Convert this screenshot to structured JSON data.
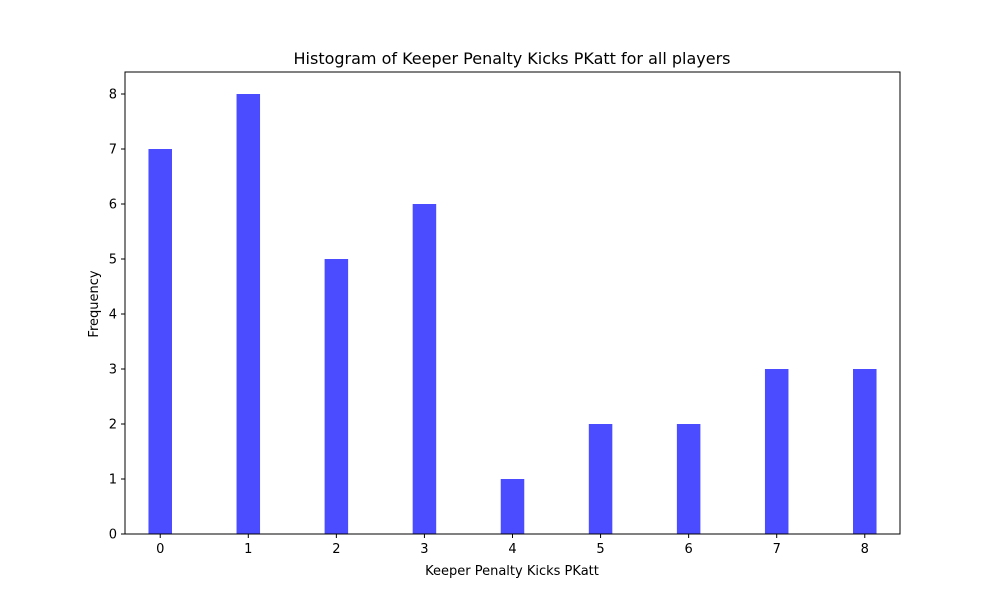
{
  "chart_data": {
    "type": "bar",
    "title": "Histogram of Keeper Penalty Kicks PKatt for all players",
    "xlabel": "Keeper Penalty Kicks PKatt",
    "ylabel": "Frequency",
    "bars": [
      {
        "x": 0,
        "value": 7
      },
      {
        "x": 1,
        "value": 8
      },
      {
        "x": 2,
        "value": 5
      },
      {
        "x": 3,
        "value": 6
      },
      {
        "x": 4,
        "value": 1
      },
      {
        "x": 5,
        "value": 2
      },
      {
        "x": 6,
        "value": 2
      },
      {
        "x": 7,
        "value": 3
      },
      {
        "x": 8,
        "value": 3
      }
    ],
    "xticks": [
      "0",
      "1",
      "2",
      "3",
      "4",
      "5",
      "6",
      "7",
      "8"
    ],
    "yticks": [
      "0",
      "1",
      "2",
      "3",
      "4",
      "5",
      "6",
      "7",
      "8"
    ],
    "xlim": [
      -0.4,
      8.4
    ],
    "ylim": [
      0,
      8.4
    ],
    "bar_width": 0.267,
    "bar_color": "#4b4bff",
    "grid": false,
    "legend": "none"
  }
}
